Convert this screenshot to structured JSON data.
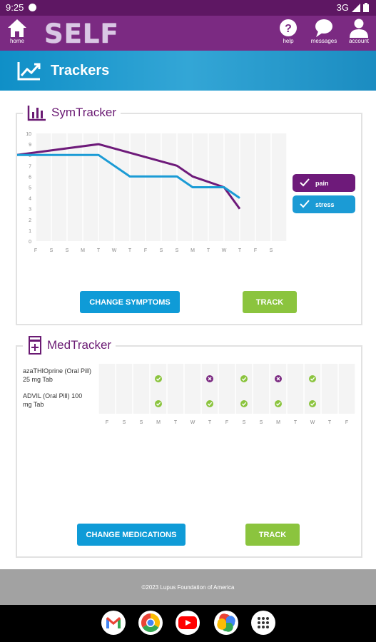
{
  "status_bar": {
    "time": "9:25",
    "network": "3G"
  },
  "app_bar": {
    "home_label": "home",
    "logo_text": "SELF",
    "help_label": "help",
    "messages_label": "messages",
    "account_label": "account"
  },
  "header": {
    "title": "Trackers",
    "icon": "trending-up-icon"
  },
  "symtracker": {
    "title": "SymTracker",
    "change_button": "CHANGE SYMPTOMS",
    "track_button": "TRACK",
    "chart_data": {
      "type": "line",
      "x": [
        "F",
        "S",
        "S",
        "M",
        "T",
        "W",
        "T",
        "F",
        "S",
        "S",
        "M",
        "T",
        "W",
        "T",
        "F",
        "S"
      ],
      "ylim": [
        0,
        10
      ],
      "yticks": [
        0,
        1,
        2,
        3,
        4,
        5,
        6,
        7,
        8,
        9,
        10
      ],
      "grid": true,
      "legend_position": "right",
      "series": [
        {
          "name": "pain",
          "color": "#6e1a7a",
          "values": [
            8,
            null,
            null,
            null,
            9,
            null,
            null,
            null,
            null,
            7,
            6,
            null,
            5,
            3,
            null,
            null
          ]
        },
        {
          "name": "stress",
          "color": "#1b9bd5",
          "values": [
            8,
            null,
            null,
            null,
            8,
            null,
            6,
            null,
            null,
            6,
            5,
            null,
            5,
            4,
            null,
            null
          ]
        }
      ]
    }
  },
  "medtracker": {
    "title": "MedTracker",
    "change_button": "CHANGE MEDICATIONS",
    "track_button": "TRACK",
    "days": [
      "F",
      "S",
      "S",
      "M",
      "T",
      "W",
      "T",
      "F",
      "S",
      "S",
      "M",
      "T",
      "W",
      "T",
      "F"
    ],
    "medications": [
      {
        "name": "azaTHIOprine (Oral Pill) 25 mg Tab",
        "marks": [
          null,
          null,
          null,
          "taken",
          null,
          null,
          "missed",
          null,
          "taken",
          null,
          "missed",
          null,
          "taken",
          null,
          null
        ]
      },
      {
        "name": "ADVIL (Oral Pill) 100 mg Tab",
        "marks": [
          null,
          null,
          null,
          "taken",
          null,
          null,
          "taken",
          null,
          "taken",
          null,
          "taken",
          null,
          "taken",
          null,
          null
        ]
      }
    ],
    "colors": {
      "taken": "#8bc43e",
      "missed": "#7b2a82"
    }
  },
  "footer": {
    "copyright": "©2023 Lupus Foundation of America"
  },
  "dock": [
    {
      "name": "Gmail",
      "icon": "gmail-icon"
    },
    {
      "name": "Chrome",
      "icon": "chrome-icon"
    },
    {
      "name": "YouTube",
      "icon": "youtube-icon"
    },
    {
      "name": "Photos",
      "icon": "photos-icon"
    },
    {
      "name": "Apps",
      "icon": "app-drawer-icon"
    }
  ]
}
